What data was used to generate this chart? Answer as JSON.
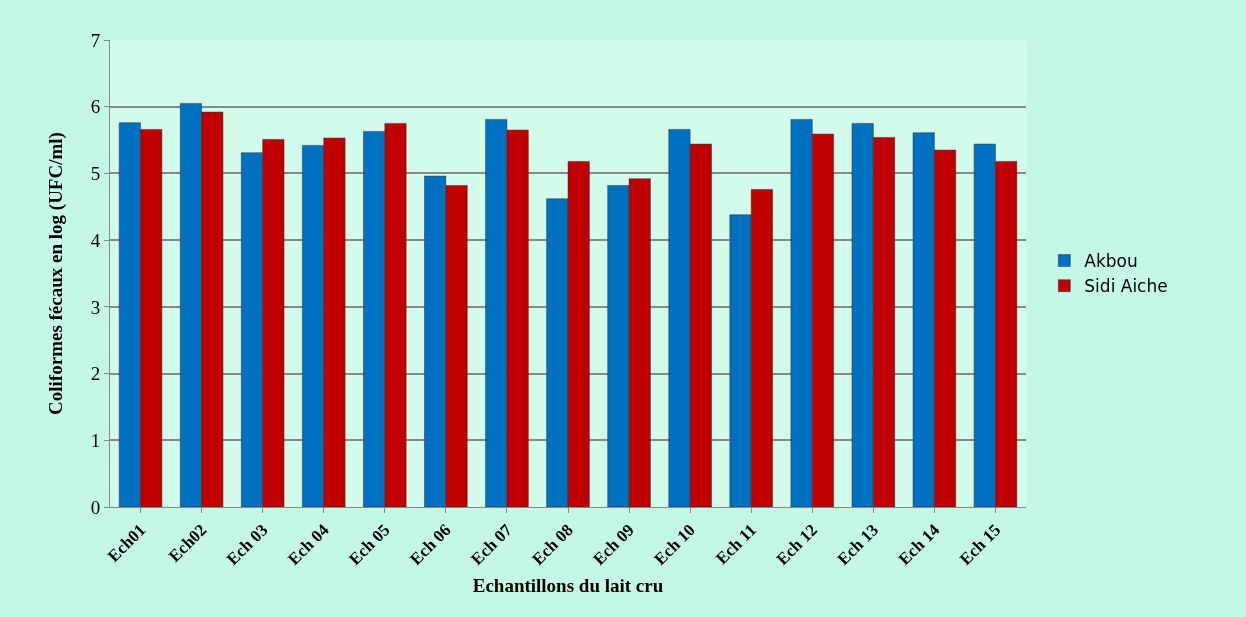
{
  "chart_data": {
    "type": "bar",
    "xlabel": "Echantillons du lait cru",
    "ylabel": "Coliformes fécaux en log (UFC/ml)",
    "categories": [
      "Ech01",
      "Ech02",
      "Ech 03",
      "Ech 04",
      "Ech 05",
      "Ech 06",
      "Ech 07",
      "Ech 08",
      "Ech 09",
      "Ech 10",
      "Ech 11",
      "Ech 12",
      "Ech 13",
      "Ech 14",
      "Ech 15"
    ],
    "series": [
      {
        "name": "Akbou",
        "color": "#0070c0",
        "values": [
          5.76,
          6.05,
          5.31,
          5.42,
          5.63,
          4.96,
          5.81,
          4.62,
          4.82,
          5.66,
          4.38,
          5.81,
          5.75,
          5.61,
          5.44
        ]
      },
      {
        "name": "Sidi Aiche",
        "color": "#c00000",
        "values": [
          5.66,
          5.92,
          5.51,
          5.53,
          5.75,
          4.82,
          5.65,
          5.18,
          4.92,
          5.44,
          4.76,
          5.59,
          5.54,
          5.35,
          5.18
        ]
      }
    ],
    "ylim": [
      0,
      7
    ],
    "yticks": [
      0,
      1,
      2,
      3,
      4,
      5,
      6,
      7
    ],
    "grid": "y",
    "legend": "right"
  }
}
